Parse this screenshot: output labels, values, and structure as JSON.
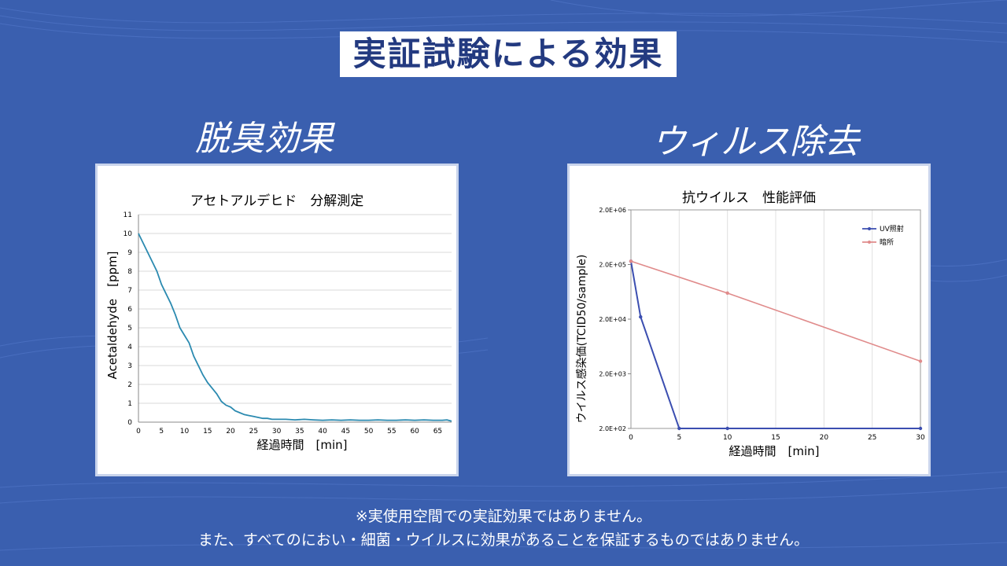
{
  "page": {
    "title": "実証試験による効果",
    "left_heading": "脱臭効果",
    "right_heading": "ウィルス除去",
    "notes": [
      "※実使用空間での実証効果ではありません。",
      "また、すべてのにおい・細菌・ウイルスに効果があることを保証するものではありません。"
    ],
    "colors": {
      "background": "#3a5faf",
      "title_text": "#233a80"
    }
  },
  "chart_data": [
    {
      "type": "line",
      "title": "アセトアルデヒド　分解測定",
      "xlabel": "経過時間　[min]",
      "ylabel": "Acetaldehyde　[ppm]",
      "xlim": [
        0,
        68
      ],
      "ylim": [
        0,
        11
      ],
      "x_ticks": [
        0,
        5,
        10,
        15,
        20,
        25,
        30,
        35,
        40,
        45,
        50,
        55,
        60,
        65
      ],
      "y_ticks": [
        0,
        1,
        2,
        3,
        4,
        5,
        6,
        7,
        8,
        9,
        10,
        11
      ],
      "grid": "horizontal",
      "series": [
        {
          "color": "#2b8ab0",
          "x": [
            0,
            1,
            2,
            3,
            4,
            5,
            6,
            7,
            8,
            9,
            10,
            11,
            12,
            13,
            14,
            15,
            16,
            17,
            18,
            19,
            20,
            21,
            22,
            23,
            24,
            25,
            26,
            27,
            28,
            29,
            30,
            32,
            34,
            36,
            38,
            40,
            42,
            44,
            46,
            48,
            50,
            52,
            54,
            56,
            58,
            60,
            62,
            64,
            66,
            67,
            68
          ],
          "y": [
            10.0,
            9.5,
            9.0,
            8.5,
            8.0,
            7.3,
            6.8,
            6.3,
            5.7,
            5.0,
            4.6,
            4.2,
            3.5,
            3.0,
            2.5,
            2.1,
            1.8,
            1.5,
            1.1,
            0.9,
            0.8,
            0.6,
            0.5,
            0.4,
            0.35,
            0.3,
            0.25,
            0.2,
            0.2,
            0.15,
            0.15,
            0.15,
            0.12,
            0.15,
            0.12,
            0.1,
            0.12,
            0.1,
            0.12,
            0.1,
            0.1,
            0.12,
            0.1,
            0.1,
            0.12,
            0.1,
            0.12,
            0.1,
            0.1,
            0.12,
            0.05
          ]
        }
      ]
    },
    {
      "type": "line",
      "title": "抗ウイルス　性能評価",
      "xlabel": "経過時間　[min]",
      "ylabel": "ウイルス感染価(TCID50/sample)",
      "y_scale": "log",
      "xlim": [
        0,
        30
      ],
      "ylim": [
        200,
        2000000
      ],
      "x_ticks": [
        0,
        5,
        10,
        15,
        20,
        25,
        30
      ],
      "y_ticks": [
        200,
        2000,
        20000,
        200000,
        2000000
      ],
      "y_tick_labels": [
        "2.0E+02",
        "2.0E+03",
        "2.0E+04",
        "2.0E+05",
        "2.0E+06"
      ],
      "grid": "vertical",
      "legend_position": "top-right",
      "series": [
        {
          "name": "UV照射",
          "color": "#3b4eb0",
          "x": [
            0,
            1,
            5,
            10,
            30
          ],
          "y": [
            230000,
            22000,
            200,
            200,
            200
          ]
        },
        {
          "name": "暗所",
          "color": "#e08b8b",
          "x": [
            0,
            10,
            30
          ],
          "y": [
            230000,
            60000,
            3400
          ]
        }
      ]
    }
  ]
}
